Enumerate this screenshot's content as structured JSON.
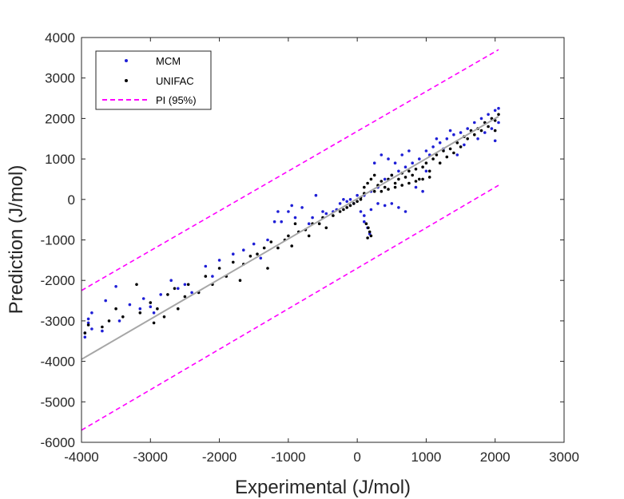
{
  "chart_data": {
    "type": "scatter",
    "xlabel": "Experimental (J/mol)",
    "ylabel": "Prediction (J/mol)",
    "xlim": [
      -4000,
      3000
    ],
    "ylim": [
      -6000,
      4000
    ],
    "xticks": [
      -4000,
      -3000,
      -2000,
      -1000,
      0,
      1000,
      2000,
      3000
    ],
    "yticks": [
      -6000,
      -5000,
      -4000,
      -3000,
      -2000,
      -1000,
      0,
      1000,
      2000,
      3000,
      4000
    ],
    "xtick_labels": [
      "-4000",
      "-3000",
      "-2000",
      "-1000",
      "0",
      "1000",
      "2000",
      "3000"
    ],
    "ytick_labels": [
      "-6000",
      "-5000",
      "-4000",
      "-3000",
      "-2000",
      "-1000",
      "0",
      "1000",
      "2000",
      "3000",
      "4000"
    ],
    "grid": false,
    "legend_position": "top-left",
    "legend": [
      {
        "label": "MCM",
        "style": "dot",
        "color": "#1f1fd6"
      },
      {
        "label": "UNIFAC",
        "style": "dot",
        "color": "#000000"
      },
      {
        "label": "PI (95%)",
        "style": "dashed",
        "color": "#ff00ff"
      }
    ],
    "series": [
      {
        "name": "MCM",
        "color": "#1f1fd6",
        "points": [
          [
            -3950,
            -3400
          ],
          [
            -3950,
            -3300
          ],
          [
            -3900,
            -3050
          ],
          [
            -3900,
            -2950
          ],
          [
            -3850,
            -2800
          ],
          [
            -3850,
            -3200
          ],
          [
            -3700,
            -3250
          ],
          [
            -3650,
            -2500
          ],
          [
            -3500,
            -2150
          ],
          [
            -3450,
            -3000
          ],
          [
            -3300,
            -2600
          ],
          [
            -3150,
            -2700
          ],
          [
            -3100,
            -2450
          ],
          [
            -3000,
            -2650
          ],
          [
            -2950,
            -2800
          ],
          [
            -2850,
            -2350
          ],
          [
            -2700,
            -2000
          ],
          [
            -2600,
            -2200
          ],
          [
            -2500,
            -2100
          ],
          [
            -2400,
            -2300
          ],
          [
            -2200,
            -1650
          ],
          [
            -2100,
            -1900
          ],
          [
            -2000,
            -1500
          ],
          [
            -1800,
            -1350
          ],
          [
            -1650,
            -1250
          ],
          [
            -1500,
            -1100
          ],
          [
            -1400,
            -1450
          ],
          [
            -1300,
            -1000
          ],
          [
            -1200,
            -550
          ],
          [
            -1150,
            -300
          ],
          [
            -1100,
            -550
          ],
          [
            -1000,
            -300
          ],
          [
            -950,
            -150
          ],
          [
            -900,
            -450
          ],
          [
            -800,
            -200
          ],
          [
            -700,
            -600
          ],
          [
            -650,
            -450
          ],
          [
            -500,
            -300
          ],
          [
            -450,
            -350
          ],
          [
            -300,
            -250
          ],
          [
            -250,
            -100
          ],
          [
            -150,
            -50
          ],
          [
            -100,
            0
          ],
          [
            -50,
            -100
          ],
          [
            50,
            -300
          ],
          [
            100,
            -400
          ],
          [
            100,
            -550
          ],
          [
            150,
            -700
          ],
          [
            180,
            -850
          ],
          [
            200,
            -250
          ],
          [
            300,
            -100
          ],
          [
            400,
            -150
          ],
          [
            500,
            -100
          ],
          [
            600,
            -200
          ],
          [
            700,
            -300
          ],
          [
            100,
            100
          ],
          [
            200,
            200
          ],
          [
            300,
            300
          ],
          [
            400,
            500
          ],
          [
            500,
            600
          ],
          [
            600,
            700
          ],
          [
            700,
            800
          ],
          [
            800,
            900
          ],
          [
            900,
            1000
          ],
          [
            1000,
            1200
          ],
          [
            1100,
            1300
          ],
          [
            1200,
            1400
          ],
          [
            1300,
            1500
          ],
          [
            1400,
            1600
          ],
          [
            1500,
            1650
          ],
          [
            850,
            300
          ],
          [
            950,
            200
          ],
          [
            1000,
            700
          ],
          [
            1050,
            1100
          ],
          [
            1150,
            1500
          ],
          [
            1250,
            1250
          ],
          [
            1350,
            1700
          ],
          [
            1450,
            1100
          ],
          [
            1550,
            1350
          ],
          [
            1600,
            1750
          ],
          [
            1700,
            1900
          ],
          [
            1750,
            1500
          ],
          [
            1800,
            2000
          ],
          [
            1850,
            1650
          ],
          [
            1900,
            2100
          ],
          [
            1950,
            1750
          ],
          [
            2000,
            2200
          ],
          [
            2000,
            1450
          ],
          [
            2050,
            2250
          ],
          [
            2050,
            1900
          ],
          [
            -200,
            0
          ],
          [
            0,
            100
          ],
          [
            250,
            900
          ],
          [
            350,
            1100
          ],
          [
            450,
            1000
          ],
          [
            550,
            900
          ],
          [
            650,
            1100
          ],
          [
            750,
            1200
          ],
          [
            -350,
            -300
          ],
          [
            -600,
            100
          ]
        ]
      },
      {
        "name": "UNIFAC",
        "color": "#000000",
        "points": [
          [
            -3950,
            -3300
          ],
          [
            -3900,
            -3100
          ],
          [
            -3700,
            -3150
          ],
          [
            -3600,
            -3000
          ],
          [
            -3500,
            -2700
          ],
          [
            -3400,
            -2900
          ],
          [
            -3200,
            -2100
          ],
          [
            -3150,
            -2800
          ],
          [
            -3000,
            -2550
          ],
          [
            -2950,
            -3050
          ],
          [
            -2900,
            -2700
          ],
          [
            -2800,
            -2900
          ],
          [
            -2750,
            -2350
          ],
          [
            -2650,
            -2200
          ],
          [
            -2600,
            -2700
          ],
          [
            -2500,
            -2400
          ],
          [
            -2450,
            -2100
          ],
          [
            -2300,
            -2300
          ],
          [
            -2200,
            -1900
          ],
          [
            -2100,
            -2100
          ],
          [
            -2000,
            -1700
          ],
          [
            -1900,
            -1900
          ],
          [
            -1800,
            -1550
          ],
          [
            -1700,
            -2000
          ],
          [
            -1650,
            -1600
          ],
          [
            -1550,
            -1400
          ],
          [
            -1450,
            -1350
          ],
          [
            -1350,
            -1200
          ],
          [
            -1300,
            -1700
          ],
          [
            -1250,
            -1050
          ],
          [
            -1150,
            -1200
          ],
          [
            -1050,
            -1000
          ],
          [
            -1000,
            -900
          ],
          [
            -950,
            -1150
          ],
          [
            -900,
            -600
          ],
          [
            -850,
            -800
          ],
          [
            -750,
            -750
          ],
          [
            -700,
            -900
          ],
          [
            -650,
            -600
          ],
          [
            -550,
            -600
          ],
          [
            -500,
            -450
          ],
          [
            -450,
            -700
          ],
          [
            -350,
            -400
          ],
          [
            -250,
            -300
          ],
          [
            -200,
            -250
          ],
          [
            -100,
            -150
          ],
          [
            0,
            -50
          ],
          [
            50,
            50
          ],
          [
            100,
            150
          ],
          [
            130,
            -600
          ],
          [
            160,
            -700
          ],
          [
            180,
            -800
          ],
          [
            200,
            -900
          ],
          [
            150,
            -950
          ],
          [
            100,
            300
          ],
          [
            150,
            400
          ],
          [
            200,
            500
          ],
          [
            250,
            200
          ],
          [
            300,
            350
          ],
          [
            350,
            450
          ],
          [
            400,
            300
          ],
          [
            450,
            500
          ],
          [
            500,
            600
          ],
          [
            550,
            400
          ],
          [
            600,
            500
          ],
          [
            650,
            650
          ],
          [
            700,
            550
          ],
          [
            750,
            700
          ],
          [
            800,
            600
          ],
          [
            850,
            750
          ],
          [
            900,
            500
          ],
          [
            950,
            800
          ],
          [
            1000,
            900
          ],
          [
            1050,
            700
          ],
          [
            1100,
            1000
          ],
          [
            1150,
            1100
          ],
          [
            1200,
            900
          ],
          [
            1250,
            1200
          ],
          [
            1300,
            1050
          ],
          [
            1350,
            1250
          ],
          [
            1400,
            1150
          ],
          [
            1450,
            1400
          ],
          [
            1500,
            1300
          ],
          [
            1600,
            1500
          ],
          [
            1700,
            1600
          ],
          [
            1800,
            1700
          ],
          [
            1900,
            1800
          ],
          [
            2000,
            1950
          ],
          [
            2050,
            2100
          ],
          [
            2000,
            1700
          ],
          [
            1950,
            2000
          ],
          [
            1850,
            1900
          ],
          [
            1750,
            1750
          ],
          [
            1650,
            1700
          ],
          [
            1550,
            1550
          ],
          [
            250,
            600
          ],
          [
            350,
            200
          ],
          [
            450,
            250
          ],
          [
            550,
            300
          ],
          [
            650,
            350
          ],
          [
            750,
            400
          ],
          [
            850,
            450
          ],
          [
            950,
            500
          ],
          [
            1050,
            550
          ],
          [
            -150,
            -200
          ],
          [
            -50,
            -100
          ],
          [
            50,
            0
          ]
        ]
      }
    ],
    "regression_line": {
      "color": "#a6a6a6",
      "points": [
        [
          -4000,
          -3950
        ],
        [
          2050,
          2050
        ]
      ]
    },
    "prediction_interval": {
      "color": "#ff00ff",
      "upper": [
        [
          -4000,
          -2250
        ],
        [
          2050,
          3700
        ]
      ],
      "lower": [
        [
          -4000,
          -5700
        ],
        [
          2050,
          350
        ]
      ]
    }
  }
}
